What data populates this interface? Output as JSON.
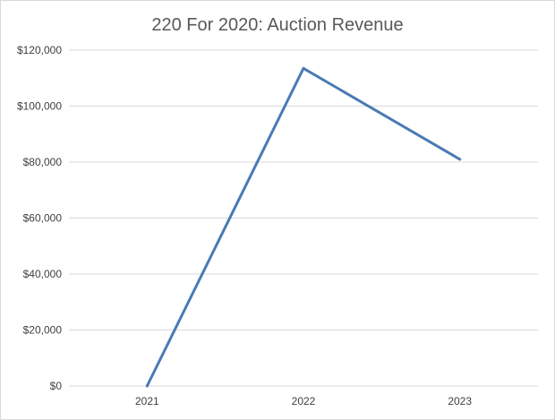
{
  "chart_data": {
    "type": "line",
    "title": "220 For 2020: Auction Revenue",
    "xlabel": "",
    "ylabel": "",
    "categories": [
      "2021",
      "2022",
      "2023"
    ],
    "series": [
      {
        "values": [
          0,
          113500,
          81000
        ],
        "color": "#4a7ab5"
      }
    ],
    "ylim": [
      0,
      120000
    ],
    "yticks": [
      0,
      20000,
      40000,
      60000,
      80000,
      100000,
      120000
    ],
    "ytick_labels": [
      "$0",
      "$20,000",
      "$40,000",
      "$60,000",
      "$80,000",
      "$100,000",
      "$120,000"
    ],
    "grid": "horizontal",
    "gridline_color": "#d9d9d9",
    "legend": "none"
  }
}
